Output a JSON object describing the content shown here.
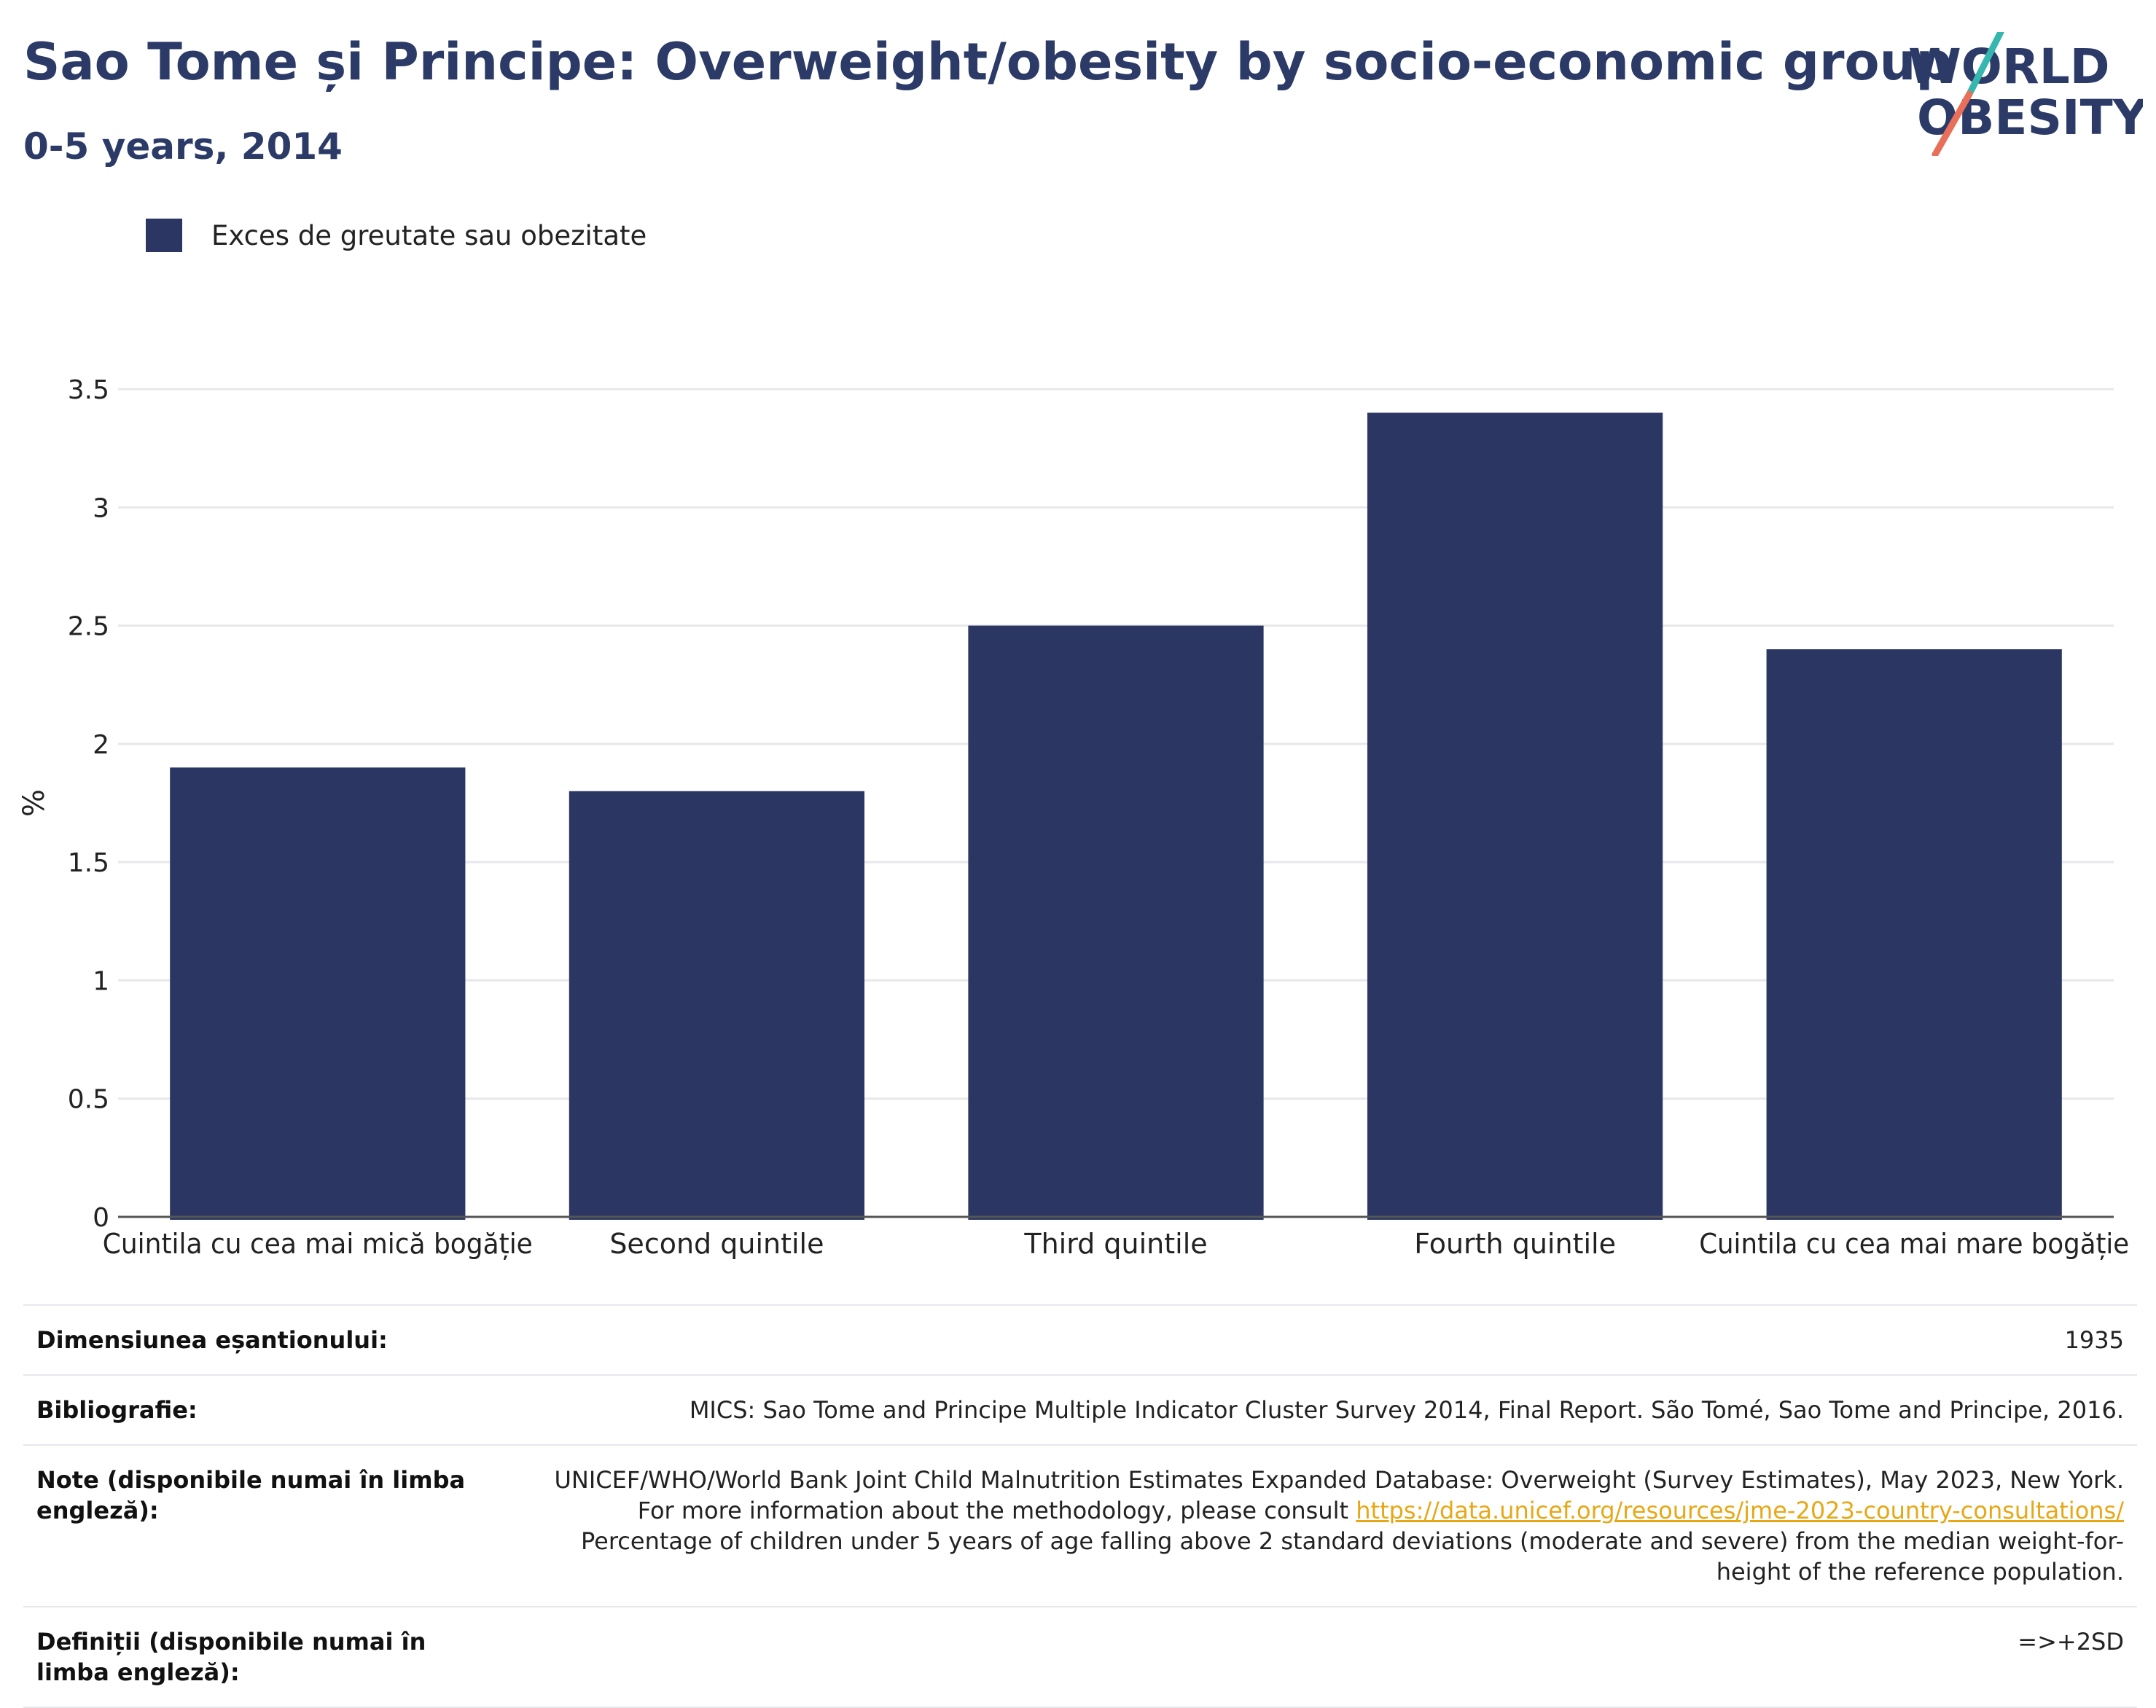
{
  "header": {
    "title": "Sao Tome și Principe: Overweight/obesity by socio-economic group",
    "subtitle": "0-5 years, 2014"
  },
  "logo": {
    "line1": "WORLD",
    "line2": "OBESITY"
  },
  "colors": {
    "bar": "#2b3662",
    "title": "#2b3a66",
    "grid": "#e8e8ec",
    "link": "#e6a817",
    "logo_teal": "#35b7b0",
    "logo_coral": "#e8705a"
  },
  "chart_data": {
    "type": "bar",
    "categories": [
      "Cuintila cu cea mai mică bogăție",
      "Second quintile",
      "Third quintile",
      "Fourth quintile",
      "Cuintila cu cea mai mare bogăție"
    ],
    "series": [
      {
        "name": "Exces de greutate sau obezitate",
        "values": [
          1.9,
          1.8,
          2.5,
          3.4,
          2.4
        ]
      }
    ],
    "ylabel": "%",
    "ylim": [
      0,
      3.5
    ],
    "yticks": [
      "0",
      "0.5",
      "1",
      "1.5",
      "2",
      "2.5",
      "3",
      "3.5"
    ],
    "grid": true,
    "legend_position": "top-left"
  },
  "info": {
    "sample_size": {
      "label": "Dimensiunea eșantionului:",
      "value": "1935"
    },
    "bibliography": {
      "label": "Bibliografie:",
      "value": "MICS: Sao Tome and Principe Multiple Indicator Cluster Survey 2014, Final Report. São Tomé, Sao Tome and Principe, 2016."
    },
    "notes": {
      "label": "Note (disponibile numai în limba engleză):",
      "text_before": "UNICEF/WHO/World Bank Joint Child Malnutrition Estimates Expanded Database: Overweight (Survey Estimates), May 2023, New York. For more information about the methodology, please consult ",
      "link": "https://data.unicef.org/resources/jme-2023-country-consultations/",
      "text_after": " Percentage of children under 5 years of age falling above 2 standard deviations (moderate and severe) from the median weight-for-height of the reference population."
    },
    "definitions": {
      "label": "Definiții (disponibile numai în limba engleză):",
      "value": "=>+2SD"
    }
  }
}
